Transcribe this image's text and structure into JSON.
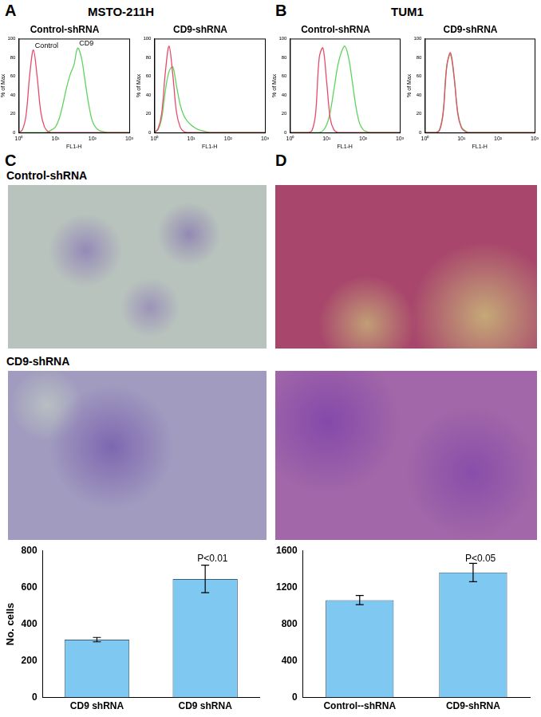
{
  "panels": [
    {
      "label": "A",
      "title": "MSTO-211H"
    },
    {
      "label": "B",
      "title": "TUM1"
    },
    {
      "label": "C"
    },
    {
      "label": "D"
    }
  ],
  "image_labels": [
    "Control-shRNA",
    "CD9-shRNA"
  ],
  "chart_data": [
    {
      "type": "line",
      "title": "Control-shRNA",
      "xlabel": "FL1-H",
      "ylabel": "% of Max",
      "log": "x",
      "grid": false,
      "x": [
        1,
        1.26,
        1.58,
        2,
        2.51,
        3.16,
        3.98,
        5.01,
        6.31,
        7.94,
        10,
        12.6,
        15.8,
        20,
        25.1,
        31.6,
        39.8,
        50.1,
        63.1,
        79.4,
        100,
        126,
        158,
        200,
        251,
        316,
        398,
        501,
        631,
        794,
        1000
      ],
      "xlim": [
        1,
        1000
      ],
      "xticks": [
        {
          "value": 1,
          "label": "10⁰"
        },
        {
          "value": 10,
          "label": "10¹"
        },
        {
          "value": 100,
          "label": "10²"
        },
        {
          "value": 1000,
          "label": "10³"
        }
      ],
      "ylim": [
        0,
        100
      ],
      "yticks": [
        0,
        20,
        40,
        60,
        80,
        100
      ],
      "series": [
        {
          "name": "Control",
          "color": "#e84a6a",
          "values": [
            0,
            3,
            18,
            62,
            88,
            60,
            22,
            6,
            1,
            0,
            0,
            0,
            0,
            0,
            0,
            0,
            0,
            0,
            0,
            0,
            0,
            0,
            0,
            0,
            0,
            0,
            0,
            0,
            0,
            0,
            0
          ]
        },
        {
          "name": "CD9",
          "color": "#5fd35f",
          "values": [
            0,
            0,
            0,
            0,
            0,
            0,
            0,
            0,
            1,
            3,
            6,
            15,
            30,
            48,
            62,
            72,
            90,
            80,
            55,
            30,
            12,
            5,
            2,
            1,
            0,
            0,
            0,
            0,
            0,
            0,
            0
          ]
        }
      ]
    },
    {
      "type": "line",
      "title": "CD9-shRNA",
      "xlabel": "FL1-H",
      "ylabel": "% of Max",
      "log": "x",
      "grid": false,
      "x": [
        1,
        1.26,
        1.58,
        2,
        2.51,
        3.16,
        3.98,
        5.01,
        6.31,
        7.94,
        10,
        12.6,
        15.8,
        20,
        25.1,
        31.6,
        39.8,
        50.1,
        63.1,
        79.4,
        100,
        126,
        158,
        200,
        251,
        316,
        398,
        501,
        631,
        794,
        1000
      ],
      "xlim": [
        1,
        1000
      ],
      "xticks": [
        {
          "value": 1,
          "label": "10⁰"
        },
        {
          "value": 10,
          "label": "10¹"
        },
        {
          "value": 100,
          "label": "10²"
        },
        {
          "value": 1000,
          "label": "10³"
        }
      ],
      "ylim": [
        0,
        100
      ],
      "yticks": [
        0,
        20,
        40,
        60,
        80,
        100
      ],
      "series": [
        {
          "color": "#e84a6a",
          "values": [
            0,
            4,
            20,
            65,
            92,
            62,
            22,
            6,
            1,
            0,
            0,
            0,
            0,
            0,
            0,
            0,
            0,
            0,
            0,
            0,
            0,
            0,
            0,
            0,
            0,
            0,
            0,
            0,
            0,
            0,
            0
          ]
        },
        {
          "color": "#5fd35f",
          "values": [
            0,
            3,
            15,
            45,
            65,
            70,
            50,
            30,
            18,
            12,
            8,
            5,
            3,
            2,
            1,
            0,
            0,
            0,
            0,
            0,
            0,
            0,
            0,
            0,
            0,
            0,
            0,
            0,
            0,
            0,
            0
          ]
        }
      ]
    },
    {
      "type": "line",
      "title": "Control-shRNA",
      "xlabel": "FL1-H",
      "ylabel": "% of Max",
      "log": "x",
      "grid": false,
      "x": [
        1,
        1.26,
        1.58,
        2,
        2.51,
        3.16,
        3.98,
        5.01,
        6.31,
        7.94,
        10,
        12.6,
        15.8,
        20,
        25.1,
        31.6,
        39.8,
        50.1,
        63.1,
        79.4,
        100,
        126,
        158,
        200,
        251,
        316,
        398,
        501,
        631,
        794,
        1000
      ],
      "xlim": [
        1,
        1000
      ],
      "xticks": [
        {
          "value": 1,
          "label": "10⁰"
        },
        {
          "value": 10,
          "label": "10¹"
        },
        {
          "value": 100,
          "label": "10²"
        },
        {
          "value": 1000,
          "label": "10³"
        }
      ],
      "ylim": [
        0,
        100
      ],
      "yticks": [
        0,
        20,
        40,
        60,
        80,
        100
      ],
      "series": [
        {
          "color": "#e84a6a",
          "values": [
            0,
            0,
            0,
            0,
            0,
            0,
            2,
            20,
            80,
            90,
            55,
            15,
            3,
            0,
            0,
            0,
            0,
            0,
            0,
            0,
            0,
            0,
            0,
            0,
            0,
            0,
            0,
            0,
            0,
            0,
            0
          ]
        },
        {
          "color": "#5fd35f",
          "values": [
            0,
            0,
            0,
            0,
            0,
            0,
            0,
            0,
            0,
            2,
            8,
            22,
            45,
            70,
            85,
            92,
            80,
            55,
            28,
            10,
            3,
            1,
            0,
            0,
            0,
            0,
            0,
            0,
            0,
            0,
            0
          ]
        }
      ]
    },
    {
      "type": "line",
      "title": "CD9-shRNA",
      "xlabel": "FL1-H",
      "ylabel": "% of Max",
      "log": "x",
      "grid": false,
      "x": [
        1,
        1.26,
        1.58,
        2,
        2.51,
        3.16,
        3.98,
        5.01,
        6.31,
        7.94,
        10,
        12.6,
        15.8,
        20,
        25.1,
        31.6,
        39.8,
        50.1,
        63.1,
        79.4,
        100,
        126,
        158,
        200,
        251,
        316,
        398,
        501,
        631,
        794,
        1000
      ],
      "xlim": [
        1,
        1000
      ],
      "xticks": [
        {
          "value": 1,
          "label": "10⁰"
        },
        {
          "value": 10,
          "label": "10¹"
        },
        {
          "value": 100,
          "label": "10²"
        },
        {
          "value": 1000,
          "label": "10³"
        }
      ],
      "ylim": [
        0,
        100
      ],
      "yticks": [
        0,
        20,
        40,
        60,
        80,
        100
      ],
      "series": [
        {
          "color": "#e84a6a",
          "values": [
            0,
            0,
            0,
            0,
            2,
            20,
            70,
            85,
            60,
            20,
            5,
            1,
            0,
            0,
            0,
            0,
            0,
            0,
            0,
            0,
            0,
            0,
            0,
            0,
            0,
            0,
            0,
            0,
            0,
            0,
            0
          ]
        },
        {
          "color": "#5fd35f",
          "values": [
            0,
            0,
            0,
            0,
            3,
            22,
            72,
            83,
            58,
            22,
            6,
            2,
            0,
            0,
            0,
            0,
            0,
            0,
            0,
            0,
            0,
            0,
            0,
            0,
            0,
            0,
            0,
            0,
            0,
            0,
            0
          ]
        }
      ]
    },
    {
      "type": "bar",
      "ylabel": "No. cells",
      "grid": false,
      "color": "#7fc8f2",
      "categories": [
        "CD9 shRNA",
        "CD9 shRNA"
      ],
      "values": [
        315,
        645
      ],
      "errors": [
        12,
        75
      ],
      "ylim": [
        0,
        800
      ],
      "yticks": [
        0,
        200,
        400,
        600,
        800
      ],
      "annotations": [
        {
          "text": "P<0.01"
        }
      ]
    },
    {
      "type": "bar",
      "grid": false,
      "color": "#7fc8f2",
      "categories": [
        "Control--shRNA",
        "CD9-shRNA"
      ],
      "values": [
        1060,
        1360
      ],
      "errors": [
        50,
        100
      ],
      "ylim": [
        0,
        1600
      ],
      "yticks": [
        0,
        400,
        800,
        1200,
        1600
      ],
      "annotations": [
        {
          "text": "P<0.05"
        }
      ]
    }
  ]
}
